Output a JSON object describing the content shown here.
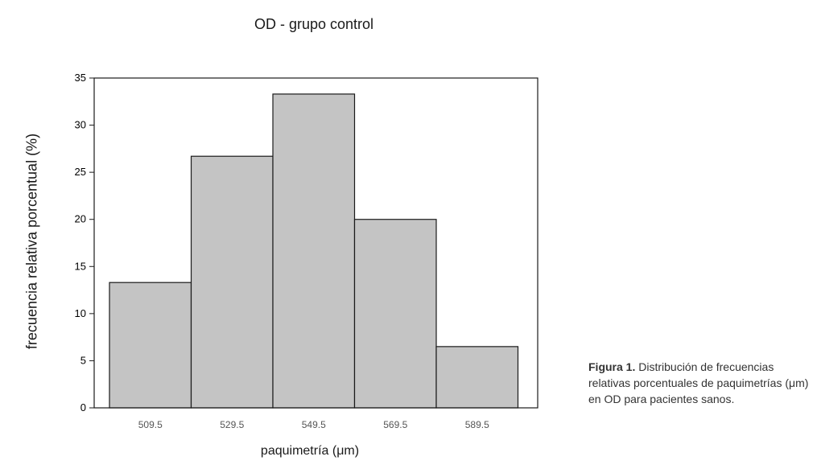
{
  "caption": {
    "label": "Figura 1.",
    "text": "Distribución de frecuencias relativas porcentuales de paquimetrías (μm) en OD para pacientes sanos."
  },
  "chart_data": {
    "type": "bar",
    "title": "OD - grupo control",
    "xlabel": "paquimetría  (μm)",
    "ylabel": "frecuencia relativa porcentual (%)",
    "categories": [
      "509.5",
      "529.5",
      "549.5",
      "569.5",
      "589.5"
    ],
    "values": [
      13.3,
      26.7,
      33.3,
      20.0,
      6.5
    ],
    "ylim": [
      0,
      35
    ],
    "yticks": [
      0,
      5,
      10,
      15,
      20,
      25,
      30,
      35
    ],
    "grid": false,
    "bar_color": "#c4c4c4",
    "bar_edge_color": "#1a1a1a"
  }
}
